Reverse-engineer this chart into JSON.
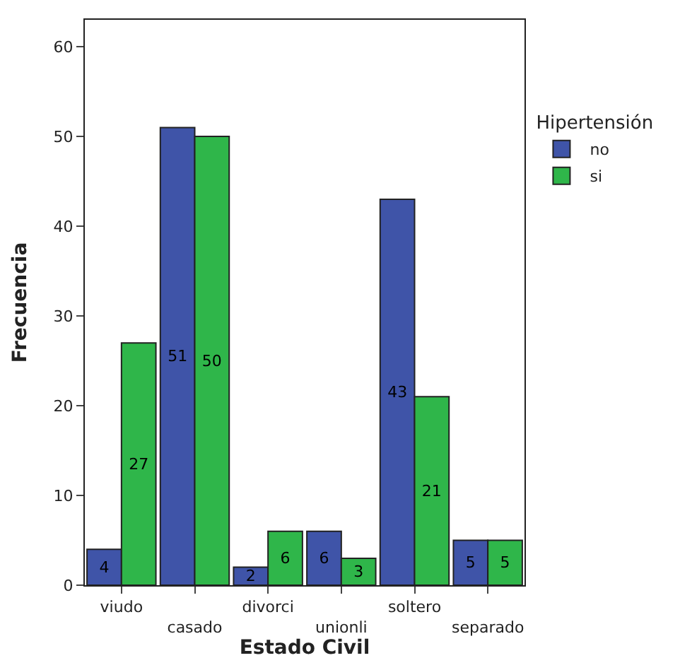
{
  "chart_data": {
    "type": "bar",
    "xlabel": "Estado Civil",
    "ylabel": "Frecuencia",
    "legend_title": "Hipertensión",
    "categories": [
      "viudo",
      "casado",
      "divorci",
      "unionli",
      "soltero",
      "separado"
    ],
    "series": [
      {
        "name": "no",
        "color": "#3f54a8",
        "values": [
          4,
          51,
          2,
          6,
          43,
          5
        ]
      },
      {
        "name": "si",
        "color": "#2fb64a",
        "values": [
          27,
          50,
          6,
          3,
          21,
          5
        ]
      }
    ],
    "ylim": [
      0,
      63
    ],
    "yticks": [
      0,
      10,
      20,
      30,
      40,
      50,
      60
    ],
    "legend": "top right",
    "data_labels": true
  }
}
